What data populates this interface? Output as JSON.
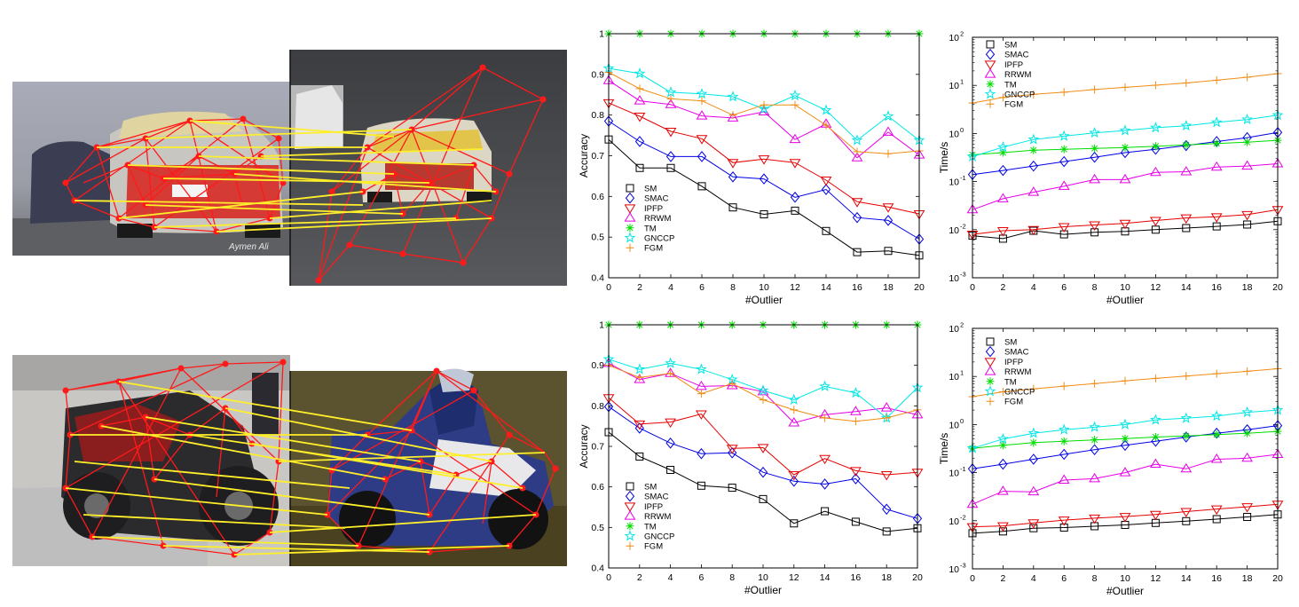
{
  "match_pairs": [
    {
      "left_label": "Aymen Ali"
    },
    {
      "left_label": ""
    }
  ],
  "chart_data": [
    {
      "type": "line",
      "ylabel": "Accuracy",
      "xlabel": "#Outlier",
      "x": [
        0,
        2,
        4,
        6,
        8,
        10,
        12,
        14,
        16,
        18,
        20
      ],
      "xticks": [
        "0",
        "2",
        "4",
        "6",
        "8",
        "10",
        "12",
        "14",
        "16",
        "18",
        "20"
      ],
      "ylim": [
        0.4,
        1.0
      ],
      "yticks": [
        0.4,
        0.5,
        0.6,
        0.7,
        0.8,
        0.9,
        1
      ],
      "ytick_labels": [
        "0.4",
        "0.5",
        "0.6",
        "0.7",
        "0.8",
        "0.9",
        "1"
      ],
      "yscale": "linear",
      "legend_position": "bottom-left",
      "series": [
        {
          "name": "SM",
          "color": "#000000",
          "marker": "square",
          "values": [
            0.74,
            0.67,
            0.67,
            0.625,
            0.573,
            0.556,
            0.565,
            0.515,
            0.463,
            0.466,
            0.455
          ]
        },
        {
          "name": "SMAC",
          "color": "#0000e6",
          "marker": "diamond",
          "values": [
            0.785,
            0.735,
            0.698,
            0.698,
            0.648,
            0.643,
            0.598,
            0.617,
            0.548,
            0.541,
            0.495
          ]
        },
        {
          "name": "IPFP",
          "color": "#e60000",
          "marker": "triangle-down",
          "values": [
            0.83,
            0.797,
            0.76,
            0.742,
            0.683,
            0.692,
            0.683,
            0.64,
            0.587,
            0.574,
            0.557
          ]
        },
        {
          "name": "RRWM",
          "color": "#e600e6",
          "marker": "triangle-up",
          "values": [
            0.885,
            0.835,
            0.826,
            0.798,
            0.793,
            0.808,
            0.74,
            0.778,
            0.695,
            0.758,
            0.702
          ]
        },
        {
          "name": "TM",
          "color": "#00dd00",
          "marker": "star",
          "values": [
            1,
            1,
            1,
            1,
            1,
            1,
            1,
            1,
            1,
            1,
            1
          ]
        },
        {
          "name": "GNCCP",
          "color": "#00e6e6",
          "marker": "pentagram",
          "values": [
            0.915,
            0.902,
            0.856,
            0.852,
            0.845,
            0.815,
            0.848,
            0.812,
            0.738,
            0.797,
            0.738
          ]
        },
        {
          "name": "FGM",
          "color": "#f08c14",
          "marker": "plus",
          "values": [
            0.905,
            0.865,
            0.84,
            0.835,
            0.8,
            0.825,
            0.825,
            0.775,
            0.71,
            0.705,
            0.712
          ]
        }
      ]
    },
    {
      "type": "line",
      "ylabel": "Time/s",
      "xlabel": "#Outlier",
      "x": [
        0,
        2,
        4,
        6,
        8,
        10,
        12,
        14,
        16,
        18,
        20
      ],
      "xticks": [
        "0",
        "2",
        "4",
        "6",
        "8",
        "10",
        "12",
        "14",
        "16",
        "18",
        "20"
      ],
      "ylim": [
        0.001,
        100
      ],
      "yscale": "log",
      "ytick_labels": [
        {
          "base": "10",
          "exp": "-3"
        },
        {
          "base": "10",
          "exp": "-2"
        },
        {
          "base": "10",
          "exp": "-1"
        },
        {
          "base": "10",
          "exp": "0"
        },
        {
          "base": "10",
          "exp": "1"
        },
        {
          "base": "10",
          "exp": "2"
        }
      ],
      "legend_position": "top-left",
      "series": [
        {
          "name": "SM",
          "color": "#000000",
          "marker": "square",
          "values": [
            0.0075,
            0.0065,
            0.0095,
            0.008,
            0.0088,
            0.0092,
            0.01,
            0.0108,
            0.0117,
            0.0128,
            0.015
          ]
        },
        {
          "name": "SMAC",
          "color": "#0000e6",
          "marker": "diamond",
          "values": [
            0.14,
            0.17,
            0.21,
            0.26,
            0.32,
            0.4,
            0.47,
            0.56,
            0.68,
            0.82,
            1.05
          ]
        },
        {
          "name": "IPFP",
          "color": "#e60000",
          "marker": "triangle-down",
          "values": [
            0.008,
            0.0095,
            0.01,
            0.0115,
            0.0125,
            0.0135,
            0.0155,
            0.0175,
            0.0185,
            0.0205,
            0.026
          ]
        },
        {
          "name": "RRWM",
          "color": "#e600e6",
          "marker": "triangle-up",
          "values": [
            0.026,
            0.044,
            0.06,
            0.08,
            0.11,
            0.11,
            0.155,
            0.16,
            0.2,
            0.21,
            0.235
          ]
        },
        {
          "name": "TM",
          "color": "#00dd00",
          "marker": "star",
          "values": [
            0.36,
            0.4,
            0.45,
            0.47,
            0.49,
            0.51,
            0.54,
            0.58,
            0.62,
            0.66,
            0.72
          ]
        },
        {
          "name": "GNCCP",
          "color": "#00e6e6",
          "marker": "pentagram",
          "values": [
            0.33,
            0.52,
            0.75,
            0.88,
            1.03,
            1.15,
            1.32,
            1.45,
            1.7,
            1.95,
            2.4
          ]
        },
        {
          "name": "FGM",
          "color": "#f08c14",
          "marker": "plus",
          "values": [
            4.3,
            5.6,
            6.5,
            7.2,
            8.2,
            9.1,
            10.1,
            11.2,
            12.8,
            14.8,
            17.5
          ]
        }
      ]
    },
    {
      "type": "line",
      "ylabel": "Accuracy",
      "xlabel": "#Outlier",
      "x": [
        0,
        2,
        4,
        6,
        8,
        10,
        12,
        14,
        16,
        18,
        20
      ],
      "xticks": [
        "0",
        "2",
        "4",
        "6",
        "8",
        "10",
        "12",
        "14",
        "16",
        "18",
        "20"
      ],
      "ylim": [
        0.4,
        1.0
      ],
      "yticks": [
        0.4,
        0.5,
        0.6,
        0.7,
        0.8,
        0.9,
        1
      ],
      "ytick_labels": [
        "0.4",
        "0.5",
        "0.6",
        "0.7",
        "0.8",
        "0.9",
        "1"
      ],
      "yscale": "linear",
      "legend_position": "bottom-left",
      "series": [
        {
          "name": "SM",
          "color": "#000000",
          "marker": "square",
          "values": [
            0.735,
            0.675,
            0.642,
            0.603,
            0.598,
            0.57,
            0.51,
            0.54,
            0.514,
            0.49,
            0.498
          ]
        },
        {
          "name": "SMAC",
          "color": "#0000e6",
          "marker": "diamond",
          "values": [
            0.798,
            0.745,
            0.708,
            0.682,
            0.684,
            0.636,
            0.614,
            0.607,
            0.62,
            0.545,
            0.522
          ]
        },
        {
          "name": "IPFP",
          "color": "#e60000",
          "marker": "triangle-down",
          "values": [
            0.82,
            0.755,
            0.76,
            0.78,
            0.695,
            0.697,
            0.63,
            0.67,
            0.64,
            0.63,
            0.636
          ]
        },
        {
          "name": "RRWM",
          "color": "#e600e6",
          "marker": "triangle-up",
          "values": [
            0.905,
            0.865,
            0.88,
            0.848,
            0.85,
            0.835,
            0.758,
            0.778,
            0.786,
            0.795,
            0.778
          ]
        },
        {
          "name": "TM",
          "color": "#00dd00",
          "marker": "star",
          "values": [
            1,
            1,
            1,
            1,
            1,
            1,
            1,
            1,
            1,
            1,
            1
          ]
        },
        {
          "name": "GNCCP",
          "color": "#00e6e6",
          "marker": "pentagram",
          "values": [
            0.915,
            0.89,
            0.905,
            0.89,
            0.865,
            0.838,
            0.815,
            0.848,
            0.832,
            0.77,
            0.845
          ]
        },
        {
          "name": "FGM",
          "color": "#f08c14",
          "marker": "plus",
          "values": [
            0.9,
            0.87,
            0.88,
            0.83,
            0.855,
            0.815,
            0.79,
            0.77,
            0.762,
            0.77,
            0.79
          ]
        }
      ]
    },
    {
      "type": "line",
      "ylabel": "Time/s",
      "xlabel": "#Outlier",
      "x": [
        0,
        2,
        4,
        6,
        8,
        10,
        12,
        14,
        16,
        18,
        20
      ],
      "xticks": [
        "0",
        "2",
        "4",
        "6",
        "8",
        "10",
        "12",
        "14",
        "16",
        "18",
        "20"
      ],
      "ylim": [
        0.001,
        100
      ],
      "yscale": "log",
      "ytick_labels": [
        {
          "base": "10",
          "exp": "-3"
        },
        {
          "base": "10",
          "exp": "-2"
        },
        {
          "base": "10",
          "exp": "-1"
        },
        {
          "base": "10",
          "exp": "0"
        },
        {
          "base": "10",
          "exp": "1"
        },
        {
          "base": "10",
          "exp": "2"
        }
      ],
      "legend_position": "top-left",
      "series": [
        {
          "name": "SM",
          "color": "#000000",
          "marker": "square",
          "values": [
            0.0055,
            0.006,
            0.007,
            0.0072,
            0.0077,
            0.0082,
            0.009,
            0.0098,
            0.0108,
            0.012,
            0.0135
          ]
        },
        {
          "name": "SMAC",
          "color": "#0000e6",
          "marker": "diamond",
          "values": [
            0.12,
            0.15,
            0.19,
            0.24,
            0.3,
            0.37,
            0.45,
            0.55,
            0.66,
            0.78,
            0.95
          ]
        },
        {
          "name": "IPFP",
          "color": "#e60000",
          "marker": "triangle-down",
          "values": [
            0.0075,
            0.0078,
            0.009,
            0.0103,
            0.0113,
            0.0122,
            0.0135,
            0.0155,
            0.0175,
            0.0195,
            0.022
          ]
        },
        {
          "name": "RRWM",
          "color": "#e600e6",
          "marker": "triangle-up",
          "values": [
            0.022,
            0.041,
            0.04,
            0.07,
            0.075,
            0.1,
            0.15,
            0.12,
            0.19,
            0.2,
            0.24
          ]
        },
        {
          "name": "TM",
          "color": "#00dd00",
          "marker": "star",
          "values": [
            0.32,
            0.37,
            0.42,
            0.45,
            0.48,
            0.51,
            0.55,
            0.58,
            0.62,
            0.66,
            0.72
          ]
        },
        {
          "name": "GNCCP",
          "color": "#00e6e6",
          "marker": "pentagram",
          "values": [
            0.32,
            0.5,
            0.66,
            0.78,
            0.88,
            1.0,
            1.25,
            1.35,
            1.5,
            1.8,
            2.0
          ]
        },
        {
          "name": "FGM",
          "color": "#f08c14",
          "marker": "plus",
          "values": [
            3.8,
            4.8,
            5.5,
            6.3,
            7.1,
            8.1,
            9.1,
            10.2,
            11.4,
            12.8,
            14.5
          ]
        }
      ]
    }
  ]
}
